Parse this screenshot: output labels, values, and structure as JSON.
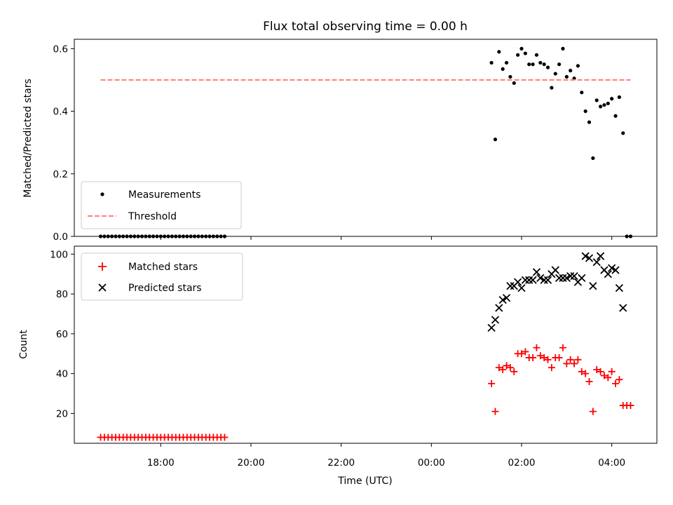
{
  "chart_data": [
    {
      "type": "scatter",
      "title": "Flux total observing time = 0.00 h",
      "xlabel": "",
      "ylabel": "Matched/Predicted stars",
      "ylim": [
        0,
        0.63
      ],
      "yticks": [
        "0.0",
        "0.2",
        "0.4",
        "0.6"
      ],
      "ytick_values": [
        0,
        0.2,
        0.4,
        0.6
      ],
      "legend_position": "lower-left",
      "series": [
        {
          "name": "Measurements",
          "color": "#000000",
          "marker": "dot",
          "zero_run": {
            "x_start": "16:40",
            "x_end": "19:25",
            "step_min": 5,
            "y": 0.0
          },
          "points": [
            [
              "01:20",
              0.555
            ],
            [
              "01:25",
              0.31
            ],
            [
              "01:30",
              0.59
            ],
            [
              "01:35",
              0.535
            ],
            [
              "01:40",
              0.555
            ],
            [
              "01:45",
              0.51
            ],
            [
              "01:50",
              0.49
            ],
            [
              "01:55",
              0.58
            ],
            [
              "02:00",
              0.6
            ],
            [
              "02:05",
              0.585
            ],
            [
              "02:10",
              0.55
            ],
            [
              "02:15",
              0.55
            ],
            [
              "02:20",
              0.58
            ],
            [
              "02:25",
              0.555
            ],
            [
              "02:30",
              0.55
            ],
            [
              "02:35",
              0.54
            ],
            [
              "02:40",
              0.475
            ],
            [
              "02:45",
              0.52
            ],
            [
              "02:50",
              0.55
            ],
            [
              "02:55",
              0.6
            ],
            [
              "03:00",
              0.51
            ],
            [
              "03:05",
              0.53
            ],
            [
              "03:10",
              0.505
            ],
            [
              "03:15",
              0.545
            ],
            [
              "03:20",
              0.46
            ],
            [
              "03:25",
              0.4
            ],
            [
              "03:30",
              0.365
            ],
            [
              "03:35",
              0.25
            ],
            [
              "03:40",
              0.435
            ],
            [
              "03:45",
              0.415
            ],
            [
              "03:50",
              0.42
            ],
            [
              "03:55",
              0.425
            ],
            [
              "04:00",
              0.44
            ],
            [
              "04:05",
              0.385
            ],
            [
              "04:10",
              0.445
            ],
            [
              "04:15",
              0.33
            ],
            [
              "04:20",
              0.0
            ],
            [
              "04:25",
              0.0
            ]
          ]
        },
        {
          "name": "Threshold",
          "color": "#ff7f7f",
          "marker": "dashed-line",
          "x": [
            "16:40",
            "04:25"
          ],
          "values": [
            0.5,
            0.5
          ]
        }
      ]
    },
    {
      "type": "scatter",
      "title": "",
      "xlabel": "Time (UTC)",
      "ylabel": "Count",
      "ylim": [
        5,
        104
      ],
      "yticks": [
        "20",
        "40",
        "60",
        "80",
        "100"
      ],
      "ytick_values": [
        20,
        40,
        60,
        80,
        100
      ],
      "xticks": [
        "18:00",
        "20:00",
        "22:00",
        "00:00",
        "02:00",
        "04:00"
      ],
      "x_range": [
        "16:05",
        "05:00"
      ],
      "legend_position": "upper-left",
      "series": [
        {
          "name": "Matched stars",
          "color": "#ff0000",
          "marker": "plus",
          "constant_run": {
            "x_start": "16:40",
            "x_end": "19:25",
            "step_min": 5,
            "y": 8
          },
          "points": [
            [
              "01:20",
              35
            ],
            [
              "01:25",
              21
            ],
            [
              "01:30",
              43
            ],
            [
              "01:35",
              42
            ],
            [
              "01:40",
              44
            ],
            [
              "01:45",
              43
            ],
            [
              "01:50",
              41
            ],
            [
              "01:55",
              50
            ],
            [
              "02:00",
              50
            ],
            [
              "02:05",
              51
            ],
            [
              "02:10",
              48
            ],
            [
              "02:15",
              48
            ],
            [
              "02:20",
              53
            ],
            [
              "02:25",
              49
            ],
            [
              "02:30",
              48
            ],
            [
              "02:35",
              47
            ],
            [
              "02:40",
              43
            ],
            [
              "02:45",
              48
            ],
            [
              "02:50",
              48
            ],
            [
              "02:55",
              53
            ],
            [
              "03:00",
              45
            ],
            [
              "03:05",
              47
            ],
            [
              "03:10",
              45
            ],
            [
              "03:15",
              47
            ],
            [
              "03:20",
              41
            ],
            [
              "03:25",
              40
            ],
            [
              "03:30",
              36
            ],
            [
              "03:35",
              21
            ],
            [
              "03:40",
              42
            ],
            [
              "03:45",
              41
            ],
            [
              "03:50",
              39
            ],
            [
              "03:55",
              38
            ],
            [
              "04:00",
              41
            ],
            [
              "04:05",
              35
            ],
            [
              "04:10",
              37
            ],
            [
              "04:15",
              24
            ],
            [
              "04:20",
              24
            ],
            [
              "04:25",
              24
            ]
          ]
        },
        {
          "name": "Predicted stars",
          "color": "#000000",
          "marker": "cross",
          "points": [
            [
              "01:20",
              63
            ],
            [
              "01:25",
              67
            ],
            [
              "01:30",
              73
            ],
            [
              "01:35",
              77
            ],
            [
              "01:40",
              78
            ],
            [
              "01:45",
              84
            ],
            [
              "01:50",
              84
            ],
            [
              "01:55",
              86
            ],
            [
              "02:00",
              83
            ],
            [
              "02:05",
              87
            ],
            [
              "02:10",
              87
            ],
            [
              "02:15",
              87
            ],
            [
              "02:20",
              91
            ],
            [
              "02:25",
              88
            ],
            [
              "02:30",
              87
            ],
            [
              "02:35",
              87
            ],
            [
              "02:40",
              90
            ],
            [
              "02:45",
              92
            ],
            [
              "02:50",
              88
            ],
            [
              "02:55",
              88
            ],
            [
              "03:00",
              88
            ],
            [
              "03:05",
              89
            ],
            [
              "03:10",
              89
            ],
            [
              "03:15",
              86
            ],
            [
              "03:20",
              88
            ],
            [
              "03:25",
              99
            ],
            [
              "03:30",
              98
            ],
            [
              "03:35",
              84
            ],
            [
              "03:40",
              96
            ],
            [
              "03:45",
              99
            ],
            [
              "03:50",
              92
            ],
            [
              "03:55",
              90
            ],
            [
              "04:00",
              93
            ],
            [
              "04:05",
              92
            ],
            [
              "04:10",
              83
            ],
            [
              "04:15",
              73
            ]
          ]
        }
      ]
    }
  ]
}
